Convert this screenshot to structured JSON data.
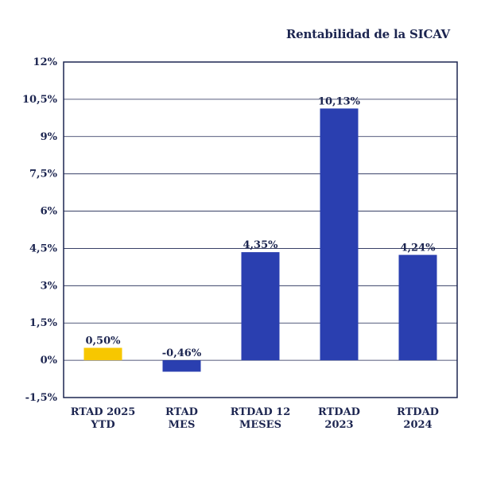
{
  "chart_data": {
    "type": "bar",
    "title": "Rentabilidad de la SICAV",
    "categories": [
      [
        "RTAD 2025",
        "YTD"
      ],
      [
        "RTAD",
        "MES"
      ],
      [
        "RTDAD 12",
        "MESES"
      ],
      [
        "RTDAD",
        "2023"
      ],
      [
        "RTDAD",
        "2024"
      ]
    ],
    "values": [
      0.5,
      -0.46,
      4.35,
      10.13,
      4.24
    ],
    "value_labels": [
      "0,50%",
      "-0,46%",
      "4,35%",
      "10,13%",
      "4,24%"
    ],
    "bar_colors": [
      "#f7c700",
      "#2a3fb0",
      "#2a3fb0",
      "#2a3fb0",
      "#2a3fb0"
    ],
    "ylim": [
      -1.5,
      12
    ],
    "yticks": [
      -1.5,
      0,
      1.5,
      3,
      4.5,
      6,
      7.5,
      9,
      10.5,
      12
    ],
    "ytick_labels": [
      "-1,5%",
      "0%",
      "1,5%",
      "3%",
      "4,5%",
      "6%",
      "7,5%",
      "9%",
      "10,5%",
      "12%"
    ],
    "grid": true,
    "xlabel": "",
    "ylabel": ""
  },
  "colors": {
    "frame": "#1c2550",
    "grid": "#1c2550",
    "text": "#1c2550"
  }
}
